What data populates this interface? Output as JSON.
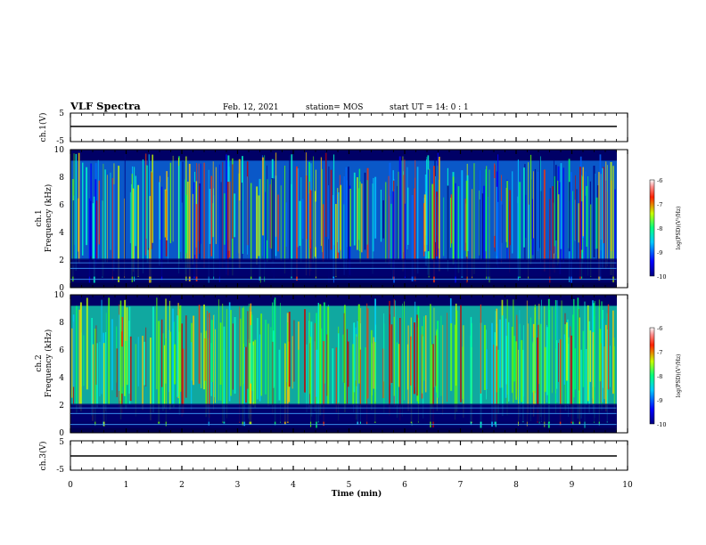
{
  "header": {
    "title": "VLF Spectra",
    "date": "Feb. 12, 2021",
    "station": "station= MOS",
    "start": "start  UT =   14: 0  : 1"
  },
  "chart_data": [
    {
      "type": "line",
      "panel": "ch1-waveform",
      "ylabel": "ch.1(V)",
      "ylim": [
        -5,
        5
      ],
      "yticks": [
        "5",
        "-5"
      ],
      "x": [
        0,
        9.8
      ],
      "values": [
        -1,
        -1
      ]
    },
    {
      "type": "heatmap",
      "panel": "ch1-spectrogram",
      "ylabel_top": "ch.1",
      "ylabel": "Frequency (kHz)",
      "ylim": [
        0,
        10
      ],
      "yticks": [
        "0",
        "2",
        "4",
        "6",
        "8",
        "10"
      ],
      "xlim": [
        0,
        9.8
      ],
      "colorbar": {
        "label": "log(PSD)(V²/Hz)",
        "range": [
          -10,
          -6
        ],
        "ticks": [
          "-6",
          "-7",
          "-8",
          "-9",
          "-10"
        ]
      }
    },
    {
      "type": "heatmap",
      "panel": "ch2-spectrogram",
      "ylabel_top": "ch.2",
      "ylabel": "Frequency (kHz)",
      "ylim": [
        0,
        10
      ],
      "yticks": [
        "0",
        "2",
        "4",
        "6",
        "8",
        "10"
      ],
      "xlim": [
        0,
        9.8
      ],
      "colorbar": {
        "label": "log(PSD)(V²/Hz)",
        "range": [
          -10,
          -6
        ],
        "ticks": [
          "-6",
          "-7",
          "-8",
          "-9",
          "-10"
        ]
      }
    },
    {
      "type": "line",
      "panel": "ch3-waveform",
      "ylabel": "ch.3(V)",
      "ylim": [
        -5,
        5
      ],
      "yticks": [
        "5",
        "-5"
      ],
      "x": [
        0,
        9.8
      ],
      "values": [
        -1,
        -1
      ]
    }
  ],
  "xaxis": {
    "label": "Time  (min)",
    "ticks": [
      "0",
      "1",
      "2",
      "3",
      "4",
      "5",
      "6",
      "7",
      "8",
      "9",
      "10"
    ],
    "range": [
      0,
      10
    ]
  },
  "colors": {
    "background": "#000066",
    "low": "#0000c8",
    "mid": "#00c8c8",
    "high": "#c80000"
  }
}
